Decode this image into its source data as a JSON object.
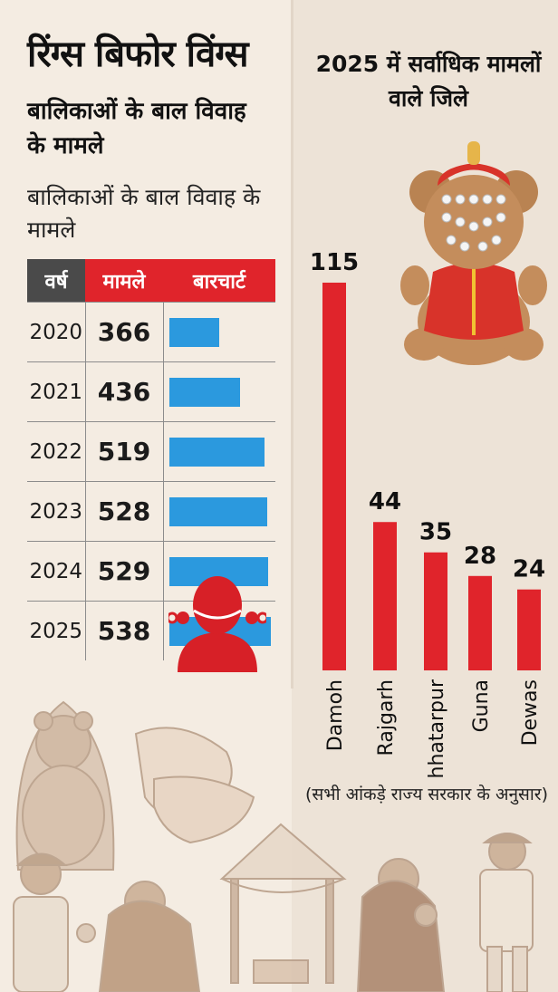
{
  "header": {
    "title": "रिंग्स बिफोर विंग्स",
    "subtitle": "बालिकाओं के बाल विवाह के मामले",
    "subtitle2": "बालिकाओं के बाल विवाह के मामले"
  },
  "table": {
    "headers": [
      "वर्ष",
      "मामले",
      "बारचार्ट"
    ],
    "rows": [
      {
        "year": "2020",
        "cases": "366"
      },
      {
        "year": "2021",
        "cases": "436"
      },
      {
        "year": "2022",
        "cases": "519"
      },
      {
        "year": "2023",
        "cases": "528"
      },
      {
        "year": "2024",
        "cases": "529"
      },
      {
        "year": "2025",
        "cases": "538"
      }
    ]
  },
  "right_panel": {
    "title": "2025 में सर्वाधिक मामलों वाले जिले",
    "note": "(सभी आंकड़े राज्य सरकार के अनुसार)"
  },
  "colors": {
    "accent_red": "#e0242b",
    "bar_blue": "#2b99de",
    "header_gray": "#4a4a4a"
  },
  "chart_data": [
    {
      "type": "table",
      "title": "बालिकाओं के बाल विवाह के मामले",
      "columns": [
        "वर्ष",
        "मामले",
        "बारचार्ट"
      ],
      "x": [
        "2020",
        "2021",
        "2022",
        "2023",
        "2024",
        "2025"
      ],
      "values": [
        366,
        436,
        519,
        528,
        529,
        538
      ]
    },
    {
      "type": "bar",
      "title": "2025 में सर्वाधिक मामलों वाले जिले",
      "categories": [
        "Damoh",
        "Rajgarh",
        "Chhatarpur",
        "Guna",
        "Dewas"
      ],
      "values": [
        115,
        44,
        35,
        28,
        24
      ],
      "ylim": [
        0,
        115
      ],
      "grid": false,
      "orientation": "vertical",
      "x_label_rotation": -90
    }
  ]
}
